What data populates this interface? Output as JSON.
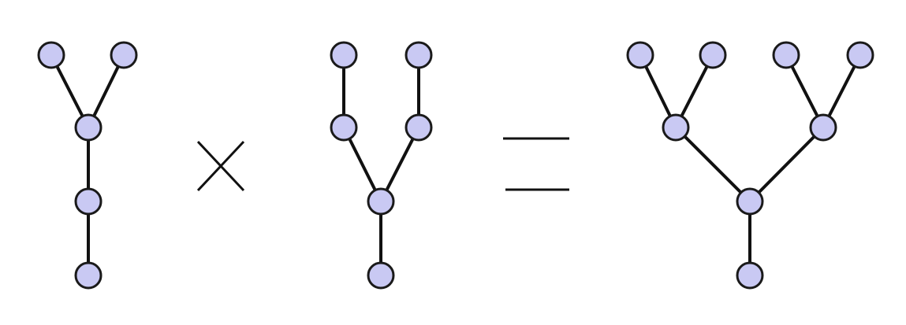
{
  "diagram": {
    "description_level": "visual-only",
    "colors": {
      "node_fill": "#c9c9f3",
      "node_stroke": "#1a1a1a",
      "edge": "#111111",
      "background": "#ffffff"
    },
    "trees": [
      {
        "id": "left-tree",
        "nodes": 5,
        "edges": 4
      },
      {
        "id": "middle-tree",
        "nodes": 6,
        "edges": 5
      },
      {
        "id": "result-tree",
        "nodes": 8,
        "edges": 7
      }
    ],
    "operators": [
      "multiply",
      "equals"
    ]
  }
}
